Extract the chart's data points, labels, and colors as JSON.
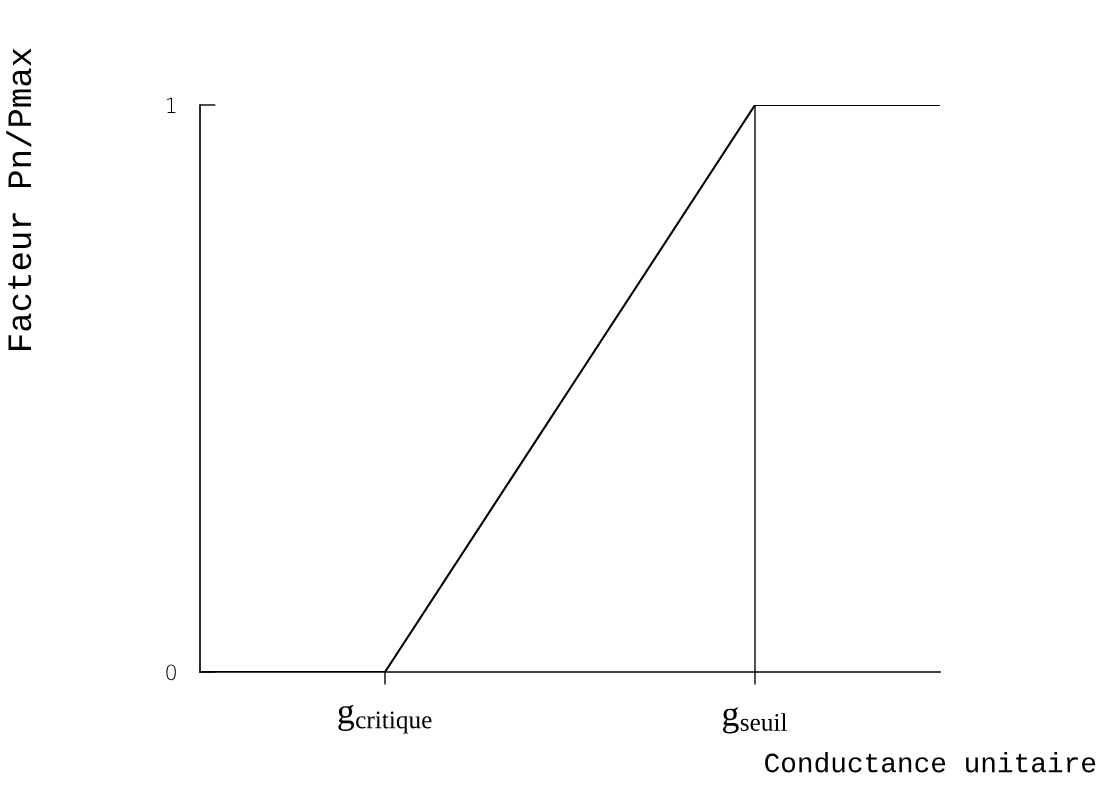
{
  "chart_data": {
    "type": "line",
    "xlabel": "Conductance unitaire",
    "ylabel": "Facteur Pn/Pmax",
    "categories": [
      null,
      "g$_{critique}$",
      null,
      "g$_{seuil}$",
      null
    ],
    "series": [
      {
        "color": "#000000",
        "values": [
          0,
          0,
          0.5,
          1,
          1
        ]
      }
    ],
    "ylim": [
      0,
      1
    ],
    "yticks": [
      0,
      1
    ],
    "ref_lines": [
      {
        "axis": "x",
        "value": "g$_{seuil}$",
        "color": "#000000"
      }
    ],
    "line_style": "solid"
  }
}
